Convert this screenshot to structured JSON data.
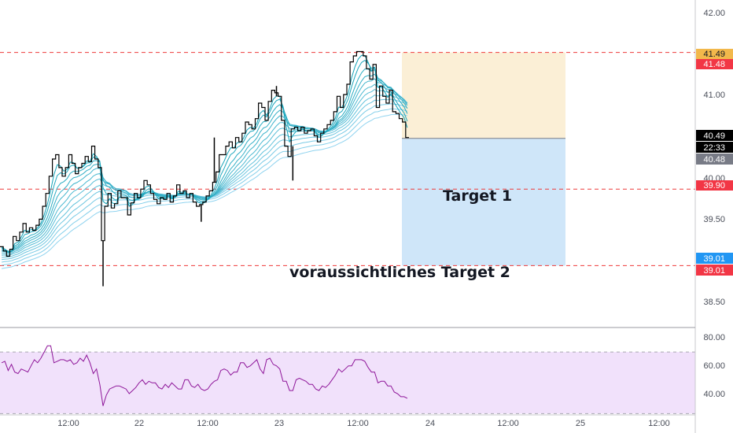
{
  "colors": {
    "candle": "#000000",
    "ribbon_light": "#8fd3ef",
    "ribbon_dark": "#14a3b8",
    "hline": "#ee3b3b",
    "rsi_line": "#8e1599",
    "rsi_band": "#f1e1fb",
    "profit_zone": "#fbefd6",
    "loss_zone": "#cfe6f9",
    "badge_yellow": "#f2b84b",
    "badge_red": "#f23645",
    "badge_blue": "#2196f3",
    "badge_black": "#000000",
    "badge_gray": "#787b86"
  },
  "annotations": {
    "target1": "Target 1",
    "target2": "voraussichtliches Target 2"
  },
  "price_axis": {
    "ticks": [
      "42.00",
      "41.00",
      "40.00",
      "39.50",
      "38.50"
    ],
    "labels": {
      "p4149": "41.49",
      "p4148": "41.48",
      "p4049": "40.49",
      "clock": "22:33",
      "p4048": "40.48",
      "p3990": "39.90",
      "p3901a": "39.01",
      "p3901b": "39.01"
    }
  },
  "rsi_axis": {
    "ticks": [
      "80.00",
      "60.00",
      "40.00"
    ]
  },
  "time_axis": {
    "ticks": [
      "12:00",
      "22",
      "12:00",
      "23",
      "12:00",
      "24",
      "12:00",
      "25",
      "12:00"
    ]
  },
  "chart_data": {
    "type": "line",
    "price_ylim": [
      38.29,
      42.1
    ],
    "rsi_ylim": [
      29.2,
      85.9
    ],
    "horizontal_levels": [
      41.49,
      39.9,
      39.01
    ],
    "position": {
      "entry": 40.49,
      "target": 41.49,
      "stop": 39.01
    },
    "rsi_band": [
      70,
      30
    ],
    "close": [
      39.23,
      39.18,
      39.12,
      39.2,
      39.35,
      39.3,
      39.4,
      39.5,
      39.4,
      39.45,
      39.42,
      39.48,
      39.55,
      39.7,
      39.85,
      40.05,
      40.25,
      40.3,
      40.15,
      40.05,
      40.15,
      40.3,
      40.2,
      40.08,
      40.15,
      40.2,
      40.28,
      40.22,
      40.4,
      40.25,
      40.15,
      39.3,
      39.7,
      39.85,
      39.68,
      39.73,
      39.88,
      39.8,
      39.8,
      39.6,
      39.74,
      39.85,
      39.8,
      39.9,
      40.0,
      39.95,
      39.85,
      39.78,
      39.73,
      39.8,
      39.78,
      39.85,
      39.75,
      39.82,
      39.95,
      39.85,
      39.88,
      39.8,
      39.85,
      39.75,
      39.7,
      39.72,
      39.75,
      39.82,
      39.88,
      39.98,
      40.1,
      40.3,
      40.3,
      40.4,
      40.45,
      40.38,
      40.5,
      40.45,
      40.55,
      40.68,
      40.65,
      40.6,
      40.72,
      40.9,
      40.85,
      40.7,
      40.92,
      41.05,
      41.02,
      40.98,
      40.7,
      40.4,
      40.28,
      40.6,
      40.62,
      40.58,
      40.62,
      40.55,
      40.58,
      40.6,
      40.52,
      40.45,
      40.55,
      40.6,
      40.65,
      40.7,
      40.8,
      40.98,
      40.85,
      41.0,
      41.12,
      41.38,
      41.45,
      41.5,
      41.5,
      41.45,
      41.3,
      41.18,
      41.35,
      40.85,
      41.1,
      40.98,
      40.9,
      41.05,
      40.8,
      40.78,
      40.72,
      40.68,
      40.5
    ],
    "rsi": [
      63,
      64,
      58,
      62,
      57,
      56,
      59,
      58,
      57,
      61,
      65,
      63,
      66,
      70,
      74,
      74,
      63,
      64,
      65,
      65,
      64,
      65,
      62,
      63,
      66,
      64,
      68,
      63,
      56,
      59,
      49,
      35,
      42,
      46,
      47,
      48,
      48,
      47,
      46,
      43,
      45,
      47,
      50,
      52,
      49,
      51,
      50,
      50,
      47,
      46,
      49,
      47,
      50,
      48,
      46,
      46,
      52,
      52,
      48,
      47,
      49,
      46,
      45,
      46,
      49,
      51,
      52,
      58,
      59,
      58,
      55,
      57,
      57,
      63,
      63,
      60,
      61,
      63,
      65,
      59,
      56,
      65,
      66,
      62,
      61,
      59,
      51,
      51,
      45,
      45,
      52,
      53,
      52,
      51,
      49,
      49,
      46,
      45,
      48,
      47,
      49,
      52,
      55,
      59,
      57,
      59,
      61,
      61,
      65,
      65,
      65,
      64,
      60,
      57,
      57,
      50,
      51,
      51,
      48,
      48,
      44,
      43,
      41,
      41,
      40
    ]
  }
}
